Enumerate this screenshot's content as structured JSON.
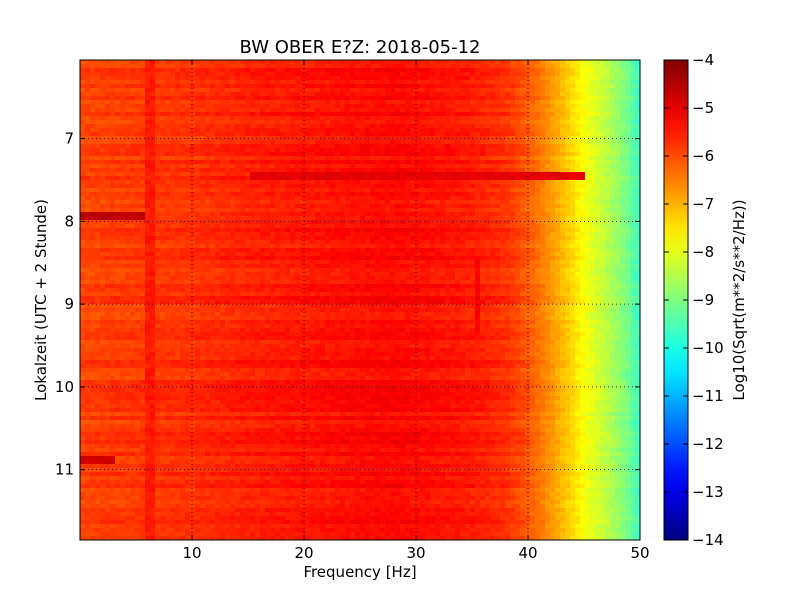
{
  "chart_data": {
    "type": "heatmap",
    "title": "BW OBER E?Z: 2018-05-12",
    "xlabel": "Frequency [Hz]",
    "ylabel": "Lokalzeit (UTC + 2 Stunde)",
    "xlim": [
      0,
      50
    ],
    "ylim": [
      11.85,
      6.05
    ],
    "y_axis_inverted": true,
    "xticks": [
      10,
      20,
      30,
      40,
      50
    ],
    "yticks": [
      7,
      8,
      9,
      10,
      11
    ],
    "xtick_labels": [
      "10",
      "20",
      "30",
      "40",
      "50"
    ],
    "ytick_labels": [
      "7",
      "8",
      "9",
      "10",
      "11"
    ],
    "grid": true,
    "grid_style": "dotted",
    "colormap": "jet",
    "colorbar": {
      "label": "Log10(Sqrt(m**2/s**2/Hz))",
      "range": [
        -14,
        -4
      ],
      "ticks": [
        -4,
        -5,
        -6,
        -7,
        -8,
        -9,
        -10,
        -11,
        -12,
        -13,
        -14
      ],
      "tick_labels": [
        "−4",
        "−5",
        "−6",
        "−7",
        "−8",
        "−9",
        "−10",
        "−11",
        "−12",
        "−13",
        "−14"
      ]
    },
    "spectrum_profile": {
      "frequency_hz": [
        0,
        5,
        10,
        15,
        20,
        25,
        28,
        30,
        35,
        38,
        40,
        42,
        44,
        45,
        46,
        47,
        48,
        49,
        50
      ],
      "log10_amplitude": [
        -5.9,
        -5.8,
        -5.7,
        -5.55,
        -5.45,
        -5.35,
        -5.3,
        -5.35,
        -5.5,
        -5.7,
        -6.1,
        -6.7,
        -7.4,
        -7.8,
        -8.1,
        -8.4,
        -8.75,
        -9.15,
        -9.7
      ]
    },
    "notable_features": [
      {
        "time": 7.95,
        "freq_range": [
          0,
          6
        ],
        "log10_amplitude": -4.6
      },
      {
        "time": 7.45,
        "freq_range": [
          15,
          45
        ],
        "log10_amplitude": -5.0
      },
      {
        "time": 10.9,
        "freq_range": [
          0,
          3
        ],
        "log10_amplitude": -4.8
      },
      {
        "freq": 6.3,
        "time_range": [
          6.05,
          11.85
        ],
        "log10_amplitude": -5.5
      },
      {
        "freq": 35.5,
        "time_range": [
          8.4,
          9.4
        ],
        "log10_amplitude": -5.2
      }
    ]
  }
}
